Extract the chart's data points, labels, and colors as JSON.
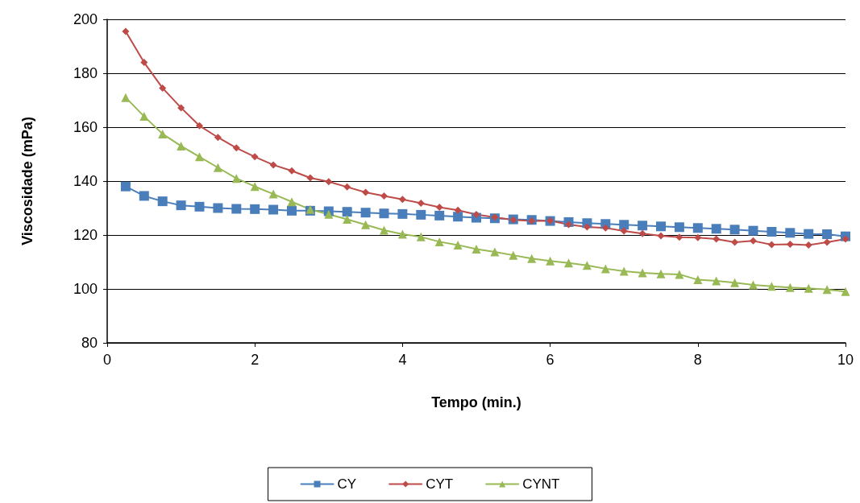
{
  "chart_data": {
    "type": "line",
    "xlabel": "Tempo (min.)",
    "ylabel": "Viscosidade (mPa)",
    "x": [
      0.25,
      0.5,
      0.75,
      1,
      1.25,
      1.5,
      1.75,
      2,
      2.25,
      2.5,
      2.75,
      3,
      3.25,
      3.5,
      3.75,
      4,
      4.25,
      4.5,
      4.75,
      5,
      5.25,
      5.5,
      5.75,
      6,
      6.25,
      6.5,
      6.75,
      7,
      7.25,
      7.5,
      7.75,
      8,
      8.25,
      8.5,
      8.75,
      9,
      9.25,
      9.5,
      9.75,
      10
    ],
    "series": [
      {
        "name": "CY",
        "color": "#4a7ebb",
        "marker": "square",
        "values": [
          138,
          134.5,
          132.5,
          131,
          130.5,
          130,
          129.7,
          129.6,
          129.4,
          129,
          129,
          128.8,
          128.6,
          128.3,
          128,
          127.8,
          127.5,
          127.2,
          126.8,
          126.4,
          126.2,
          125.8,
          125.6,
          125.2,
          124.8,
          124.4,
          124.1,
          123.8,
          123.5,
          123.2,
          122.9,
          122.6,
          122.3,
          122,
          121.6,
          121.2,
          120.8,
          120.4,
          120.3,
          119.5
        ]
      },
      {
        "name": "CYT",
        "color": "#be4b48",
        "marker": "diamond",
        "values": [
          195.5,
          184,
          174.5,
          167.2,
          160.5,
          156.2,
          152.3,
          149,
          146,
          143.8,
          141.2,
          139.8,
          137.8,
          135.8,
          134.5,
          133.2,
          131.8,
          130.3,
          129.2,
          127.6,
          126.6,
          125.6,
          125.2,
          125.3,
          123.9,
          123,
          122.6,
          121.5,
          120.5,
          119.7,
          119.2,
          119,
          118.5,
          117.3,
          117.8,
          116.4,
          116.6,
          116.3,
          117.3,
          118.5
        ]
      },
      {
        "name": "CYNT",
        "color": "#98b954",
        "marker": "triangle",
        "values": [
          171,
          164,
          157.5,
          153,
          149,
          145,
          141,
          138,
          135.2,
          132.3,
          129.5,
          127.7,
          125.8,
          123.8,
          121.8,
          120.3,
          119.3,
          117.5,
          116.3,
          114.8,
          113.7,
          112.5,
          111.3,
          110.4,
          109.6,
          108.7,
          107.5,
          106.6,
          106,
          105.6,
          105.4,
          103.4,
          103,
          102.3,
          101.5,
          101,
          100.5,
          100.2,
          99.8,
          99
        ]
      }
    ],
    "xlim": [
      0,
      10
    ],
    "xticks": [
      0,
      2,
      4,
      6,
      8,
      10
    ],
    "ylim": [
      80,
      200
    ],
    "yticks": [
      80,
      100,
      120,
      140,
      160,
      180,
      200
    ],
    "grid": "y",
    "legend": "bottom",
    "line_style": "solid"
  }
}
